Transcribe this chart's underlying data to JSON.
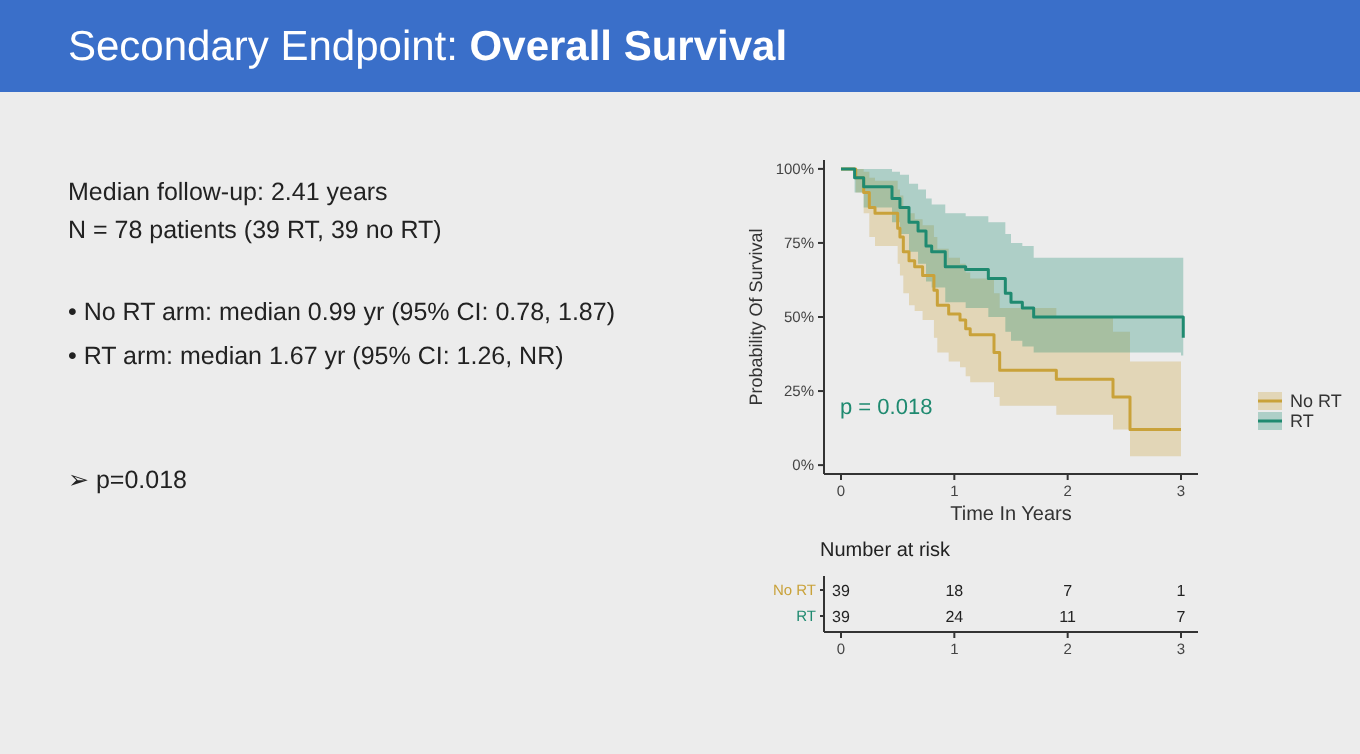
{
  "chart_data": [
    {
      "type": "other",
      "title": "Secondary Endpoint: Overall Survival",
      "annotations": [
        "Median follow-up: 2.41 years",
        "N = 78 patients (39 RT, 39 no RT)",
        "• No RT arm: median 0.99 yr (95% CI: 0.78, 1.87)",
        "• RT arm: median 1.67 yr (95% CI: 1.26, NR)",
        "➢ p=0.018"
      ]
    },
    {
      "type": "step",
      "xlabel": "Time In Years",
      "ylabel": "Probability Of Survival",
      "xlim": [
        -0.15,
        3.15
      ],
      "ylim": [
        -3,
        103
      ],
      "xticks": [
        0,
        1,
        2,
        3
      ],
      "yticks": [
        {
          "value": 0,
          "label": "0%"
        },
        {
          "value": 25,
          "label": "25%"
        },
        {
          "value": 50,
          "label": "50%"
        },
        {
          "value": 75,
          "label": "75%"
        },
        {
          "value": 100,
          "label": "100%"
        }
      ],
      "legend": "right",
      "grid": false,
      "annotations": [
        "p = 0.018"
      ],
      "series": [
        {
          "name": "No RT",
          "color": "#c9a23a",
          "x": [
            0,
            0.13,
            0.2,
            0.25,
            0.3,
            0.5,
            0.52,
            0.55,
            0.6,
            0.65,
            0.72,
            0.82,
            0.85,
            0.95,
            1.05,
            1.1,
            1.14,
            1.35,
            1.4,
            1.9,
            2.4,
            2.55,
            3.0
          ],
          "values": [
            100,
            97,
            92,
            87,
            85,
            80,
            77,
            72,
            69,
            67,
            64,
            59,
            54,
            51,
            49,
            46,
            44,
            38,
            32,
            29,
            23,
            12,
            12
          ],
          "upper": [
            100,
            100,
            99,
            97,
            96,
            93,
            91,
            87,
            85,
            83,
            81,
            77,
            73,
            70,
            68,
            65,
            63,
            58,
            53,
            50,
            45,
            35,
            35
          ],
          "lower": [
            100,
            92,
            85,
            77,
            74,
            68,
            64,
            58,
            54,
            52,
            49,
            43,
            38,
            35,
            33,
            30,
            28,
            23,
            20,
            17,
            12,
            3,
            3
          ]
        },
        {
          "name": "RT",
          "color": "#1f8a70",
          "x": [
            0,
            0.12,
            0.2,
            0.45,
            0.52,
            0.6,
            0.68,
            0.75,
            0.8,
            0.92,
            1.1,
            1.3,
            1.45,
            1.5,
            1.6,
            1.7,
            3.0,
            3.02
          ],
          "values": [
            100,
            97,
            94,
            90,
            87,
            82,
            79,
            74,
            72,
            67,
            66,
            63,
            58,
            55,
            53,
            50,
            50,
            43
          ],
          "upper": [
            100,
            100,
            100,
            99,
            98,
            95,
            93,
            90,
            88,
            85,
            84,
            82,
            78,
            75,
            74,
            70,
            70,
            70
          ],
          "lower": [
            100,
            92,
            87,
            82,
            78,
            72,
            68,
            62,
            60,
            55,
            53,
            50,
            45,
            42,
            40,
            38,
            37,
            36
          ]
        }
      ]
    },
    {
      "type": "heatmap",
      "title": "Number at risk",
      "categories": [
        "0",
        "1",
        "2",
        "3"
      ],
      "y_categories": [
        "No RT",
        "RT"
      ],
      "cells": [
        [
          39,
          18,
          7,
          1
        ],
        [
          39,
          24,
          11,
          7
        ]
      ],
      "data_labels": true
    }
  ]
}
